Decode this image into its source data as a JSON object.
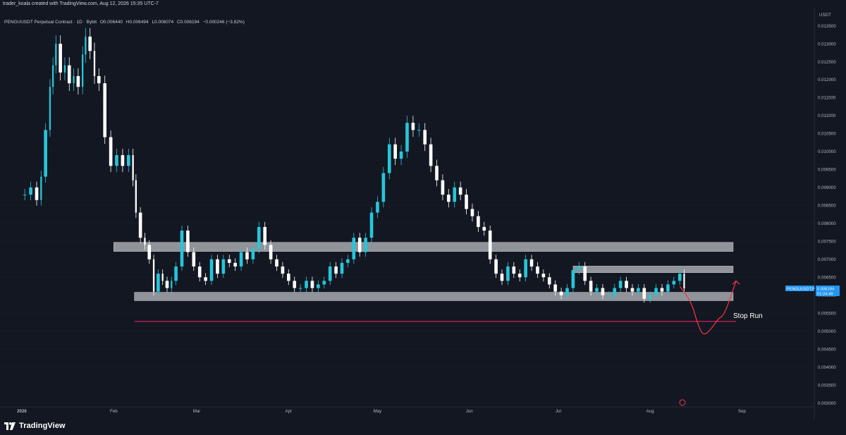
{
  "header": {
    "author_line": "trader_koala created with TradingView.com, Aug 12, 2026 15:35 UTC-7"
  },
  "legend": {
    "symbol_text": "PENGUUSDT Perpetual Contract · 1D · Bybit",
    "open": "O0.006440",
    "high": "H0.006494",
    "low": "L0.006074",
    "close": "C0.006194",
    "change": "−0.000246 (−3.82%)"
  },
  "price_scale": {
    "currency": "USDT",
    "ticks": [
      "0.013500",
      "0.013000",
      "0.012500",
      "0.012000",
      "0.011500",
      "0.011000",
      "0.010500",
      "0.010000",
      "0.009500",
      "0.009000",
      "0.008500",
      "0.008000",
      "0.007500",
      "0.007000",
      "0.006500",
      "0.006000",
      "0.005500",
      "0.005000",
      "0.004500",
      "0.004000",
      "0.003500",
      "0.003000"
    ]
  },
  "last_price_tag": {
    "symbol": "PENGUUSDT.P",
    "price": "0.006194",
    "countdown": "01:24:49"
  },
  "time_axis": {
    "labels": [
      "2026",
      "Feb",
      "Mar",
      "Apr",
      "May",
      "Jun",
      "Jul",
      "Aug",
      "Sep"
    ]
  },
  "annotations": {
    "stop_run_label": "Stop Run"
  },
  "footer": {
    "brand": "TradingView"
  },
  "colors": {
    "background": "#131722",
    "bull_candle": "#26c6da",
    "bear_candle": "#ffffff",
    "zone_fill": "#a7a9ae",
    "stop_line": "#e91e63",
    "projection_arrow": "#f23645",
    "price_tag": "#2196f3"
  },
  "chart_data": {
    "type": "candlestick",
    "symbol": "PENGUUSDT",
    "interval": "1D",
    "ylim": [
      0.0029,
      0.0137
    ],
    "x_range": [
      "2026-01-01",
      "2026-09-04"
    ],
    "zones": [
      {
        "label": "",
        "from": 0.00722,
        "to": 0.00747,
        "start": "2026-02-01",
        "end": "2026-08-29"
      },
      {
        "label": "",
        "from": 0.00663,
        "to": 0.00681,
        "start": "2026-07-06",
        "end": "2026-08-29"
      },
      {
        "label": "",
        "from": 0.00585,
        "to": 0.00608,
        "start": "2026-02-08",
        "end": "2026-08-29"
      }
    ],
    "stop_line": {
      "price": 0.00527,
      "start": "2026-02-08",
      "end": "2026-08-30",
      "label": "Stop Run"
    },
    "projection_path": [
      {
        "date": "2026-08-11",
        "price": 0.00625
      },
      {
        "date": "2026-08-15",
        "price": 0.0058
      },
      {
        "date": "2026-08-17",
        "price": 0.0052
      },
      {
        "date": "2026-08-19",
        "price": 0.00485
      },
      {
        "date": "2026-08-22",
        "price": 0.0051
      },
      {
        "date": "2026-08-24",
        "price": 0.00535
      },
      {
        "date": "2026-08-26",
        "price": 0.00545
      },
      {
        "date": "2026-08-29",
        "price": 0.00615
      },
      {
        "date": "2026-08-30",
        "price": 0.0064
      }
    ],
    "close_series": [
      [
        "2026-01-01",
        0.0088
      ],
      [
        "2026-01-03",
        0.009
      ],
      [
        "2026-01-05",
        0.00865
      ],
      [
        "2026-01-07",
        0.0093
      ],
      [
        "2026-01-08",
        0.0106
      ],
      [
        "2026-01-10",
        0.0118
      ],
      [
        "2026-01-11",
        0.0124
      ],
      [
        "2026-01-12",
        0.013
      ],
      [
        "2026-01-13",
        0.0122
      ],
      [
        "2026-01-15",
        0.0124
      ],
      [
        "2026-01-16",
        0.0119
      ],
      [
        "2026-01-18",
        0.0121
      ],
      [
        "2026-01-19",
        0.0118
      ],
      [
        "2026-01-21",
        0.0127
      ],
      [
        "2026-01-22",
        0.0132
      ],
      [
        "2026-01-23",
        0.0128
      ],
      [
        "2026-01-25",
        0.0121
      ],
      [
        "2026-01-26",
        0.0119
      ],
      [
        "2026-01-28",
        0.0104
      ],
      [
        "2026-01-30",
        0.0096
      ],
      [
        "2026-02-01",
        0.0099
      ],
      [
        "2026-02-03",
        0.0096
      ],
      [
        "2026-02-05",
        0.0099
      ],
      [
        "2026-02-07",
        0.0092
      ],
      [
        "2026-02-08",
        0.0083
      ],
      [
        "2026-02-09",
        0.0076
      ],
      [
        "2026-02-11",
        0.0074
      ],
      [
        "2026-02-12",
        0.007
      ],
      [
        "2026-02-14",
        0.0061
      ],
      [
        "2026-02-15",
        0.0066
      ],
      [
        "2026-02-17",
        0.0064
      ],
      [
        "2026-02-18",
        0.0062
      ],
      [
        "2026-02-20",
        0.0064
      ],
      [
        "2026-02-21",
        0.0068
      ],
      [
        "2026-02-23",
        0.0078
      ],
      [
        "2026-02-25",
        0.0072
      ],
      [
        "2026-02-27",
        0.0068
      ],
      [
        "2026-03-01",
        0.0065
      ],
      [
        "2026-03-03",
        0.0064
      ],
      [
        "2026-03-05",
        0.007
      ],
      [
        "2026-03-07",
        0.0066
      ],
      [
        "2026-03-09",
        0.007
      ],
      [
        "2026-03-11",
        0.0069
      ],
      [
        "2026-03-13",
        0.0068
      ],
      [
        "2026-03-15",
        0.0072
      ],
      [
        "2026-03-17",
        0.007
      ],
      [
        "2026-03-19",
        0.0073
      ],
      [
        "2026-03-21",
        0.0079
      ],
      [
        "2026-03-23",
        0.0074
      ],
      [
        "2026-03-25",
        0.007
      ],
      [
        "2026-03-27",
        0.0068
      ],
      [
        "2026-03-29",
        0.0066
      ],
      [
        "2026-03-31",
        0.0064
      ],
      [
        "2026-04-02",
        0.0062
      ],
      [
        "2026-04-04",
        0.0062
      ],
      [
        "2026-04-06",
        0.0064
      ],
      [
        "2026-04-08",
        0.0062
      ],
      [
        "2026-04-10",
        0.0063
      ],
      [
        "2026-04-12",
        0.0064
      ],
      [
        "2026-04-14",
        0.0068
      ],
      [
        "2026-04-16",
        0.0066
      ],
      [
        "2026-04-18",
        0.0069
      ],
      [
        "2026-04-20",
        0.007
      ],
      [
        "2026-04-22",
        0.0076
      ],
      [
        "2026-04-24",
        0.0072
      ],
      [
        "2026-04-26",
        0.0076
      ],
      [
        "2026-04-28",
        0.0083
      ],
      [
        "2026-04-30",
        0.0086
      ],
      [
        "2026-05-02",
        0.0094
      ],
      [
        "2026-05-04",
        0.0102
      ],
      [
        "2026-05-06",
        0.0098
      ],
      [
        "2026-05-08",
        0.01
      ],
      [
        "2026-05-10",
        0.0108
      ],
      [
        "2026-05-12",
        0.0106
      ],
      [
        "2026-05-14",
        0.0106
      ],
      [
        "2026-05-16",
        0.0102
      ],
      [
        "2026-05-18",
        0.0096
      ],
      [
        "2026-05-20",
        0.0092
      ],
      [
        "2026-05-22",
        0.0088
      ],
      [
        "2026-05-24",
        0.0086
      ],
      [
        "2026-05-26",
        0.009
      ],
      [
        "2026-05-28",
        0.0088
      ],
      [
        "2026-05-30",
        0.0084
      ],
      [
        "2026-06-01",
        0.0082
      ],
      [
        "2026-06-03",
        0.0079
      ],
      [
        "2026-06-05",
        0.0078
      ],
      [
        "2026-06-07",
        0.007
      ],
      [
        "2026-06-09",
        0.0066
      ],
      [
        "2026-06-11",
        0.0064
      ],
      [
        "2026-06-13",
        0.0068
      ],
      [
        "2026-06-15",
        0.0066
      ],
      [
        "2026-06-17",
        0.0065
      ],
      [
        "2026-06-19",
        0.007
      ],
      [
        "2026-06-21",
        0.0068
      ],
      [
        "2026-06-23",
        0.0066
      ],
      [
        "2026-06-25",
        0.0065
      ],
      [
        "2026-06-27",
        0.0063
      ],
      [
        "2026-06-29",
        0.0061
      ],
      [
        "2026-07-01",
        0.006
      ],
      [
        "2026-07-03",
        0.0062
      ],
      [
        "2026-07-05",
        0.0067
      ],
      [
        "2026-07-07",
        0.0068
      ],
      [
        "2026-07-09",
        0.0064
      ],
      [
        "2026-07-11",
        0.0061
      ],
      [
        "2026-07-13",
        0.0062
      ],
      [
        "2026-07-15",
        0.006
      ],
      [
        "2026-07-17",
        0.006
      ],
      [
        "2026-07-19",
        0.0062
      ],
      [
        "2026-07-21",
        0.0064
      ],
      [
        "2026-07-23",
        0.0062
      ],
      [
        "2026-07-25",
        0.0061
      ],
      [
        "2026-07-27",
        0.0062
      ],
      [
        "2026-07-29",
        0.0059
      ],
      [
        "2026-07-31",
        0.006
      ],
      [
        "2026-08-02",
        0.0062
      ],
      [
        "2026-08-04",
        0.0061
      ],
      [
        "2026-08-06",
        0.0063
      ],
      [
        "2026-08-08",
        0.0064
      ],
      [
        "2026-08-10",
        0.0066
      ],
      [
        "2026-08-12",
        0.00619
      ]
    ]
  }
}
